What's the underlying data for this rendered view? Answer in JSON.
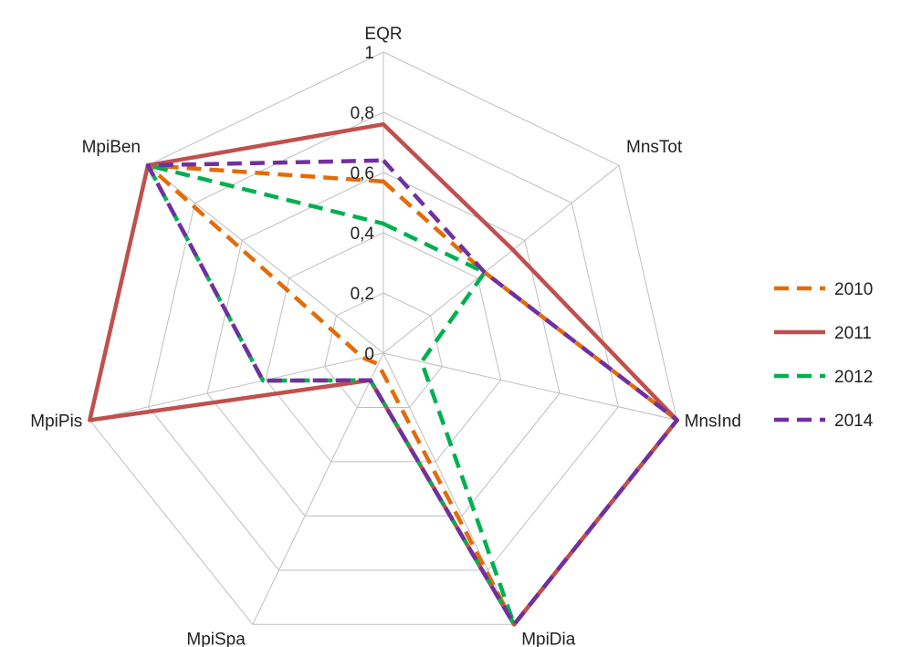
{
  "chart_data": {
    "type": "radar",
    "axes": [
      "EQR",
      "MnsTot",
      "MnsInd",
      "MpiDia",
      "MpiSpa",
      "MpiPis",
      "MpiBen"
    ],
    "range": [
      0,
      1
    ],
    "ticks": [
      0,
      0.2,
      0.4,
      0.6,
      0.8,
      1
    ],
    "tick_labels": [
      "0",
      "0,2",
      "0,4",
      "0,6",
      "0,8",
      "1"
    ],
    "grid": true,
    "legend_position": "right",
    "series": [
      {
        "name": "2010",
        "color": "#E36C09",
        "dash": "dashed",
        "values": [
          0.57,
          0.43,
          1.0,
          1.0,
          0.04,
          0.07,
          1.0
        ]
      },
      {
        "name": "2011",
        "color": "#C0504D",
        "dash": "solid",
        "values": [
          0.76,
          0.55,
          1.0,
          1.0,
          0.1,
          1.0,
          1.0
        ]
      },
      {
        "name": "2012",
        "color": "#00B050",
        "dash": "dashed",
        "values": [
          0.43,
          0.43,
          0.13,
          1.0,
          0.1,
          0.41,
          1.0
        ]
      },
      {
        "name": "2014",
        "color": "#7030A0",
        "dash": "dashed",
        "values": [
          0.64,
          0.43,
          1.0,
          1.0,
          0.1,
          0.41,
          1.0
        ]
      }
    ]
  }
}
